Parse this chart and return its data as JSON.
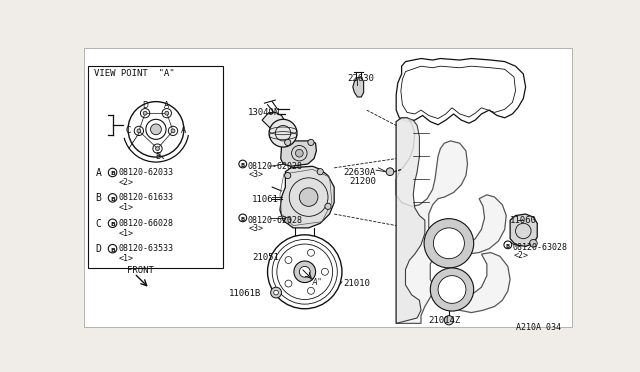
{
  "bg_color": "#f0ede8",
  "diagram_ref": "A210A 034",
  "viewpoint_label": "VIEW POINT  \"A\"",
  "bolt_labels": [
    {
      "key": "A",
      "part": "08120-62033",
      "qty": "<2>"
    },
    {
      "key": "B",
      "part": "08120-61633",
      "qty": "<1>"
    },
    {
      "key": "C",
      "part": "08120-66028",
      "qty": "<1>"
    },
    {
      "key": "D",
      "part": "08120-63533",
      "qty": "<1>"
    }
  ],
  "text_color": "#111111",
  "line_color": "#111111",
  "lw_main": 0.9,
  "lw_thin": 0.6,
  "lw_leader": 0.6
}
